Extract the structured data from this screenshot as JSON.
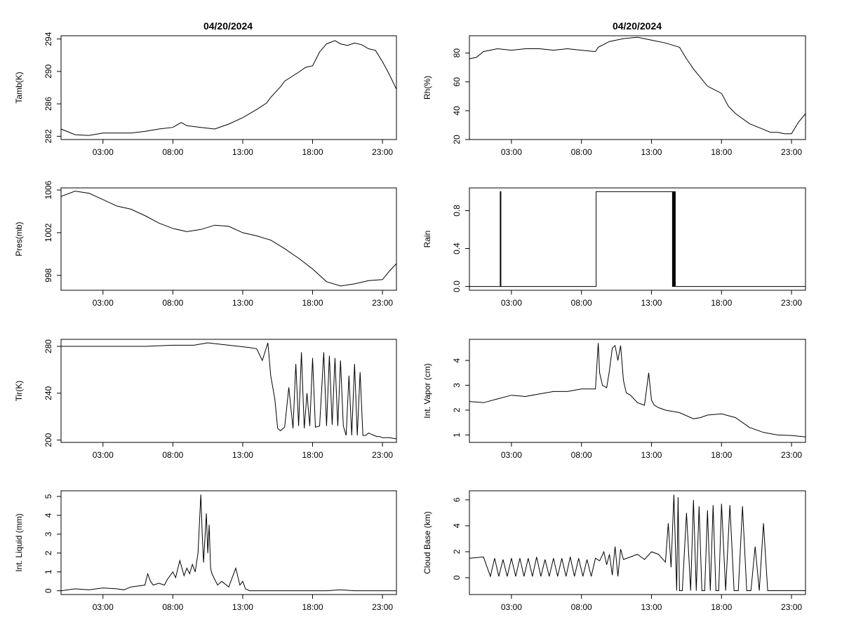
{
  "charts": {
    "left": {
      "title": "04/20/2024"
    },
    "right": {
      "title": "04/20/2024"
    }
  },
  "chart_data": [
    {
      "type": "line",
      "title": "04/20/2024",
      "ylabel": "Tamb(K)",
      "xlim": [
        0.0,
        24.0
      ],
      "ylim": [
        281.6,
        294.4
      ],
      "xticks": [
        3,
        8,
        13,
        18,
        23
      ],
      "xticklabels": [
        "03:00",
        "08:00",
        "13:00",
        "18:00",
        "23:00"
      ],
      "yticks": [
        282,
        286,
        290,
        294
      ],
      "yticklabels": [
        "282",
        "286",
        "290",
        "294"
      ],
      "x": [
        0,
        1,
        2,
        3,
        4,
        5,
        6,
        7,
        8,
        8.6,
        9,
        9.5,
        10,
        11,
        11.5,
        12,
        13,
        14,
        14.7,
        15,
        15.7,
        16,
        17,
        17.5,
        18,
        18.5,
        19,
        19.6,
        20,
        20.5,
        21,
        21.5,
        22,
        22.5,
        23,
        23.5,
        24
      ],
      "y": [
        282.9,
        282.2,
        282.1,
        282.4,
        282.4,
        282.4,
        282.6,
        282.9,
        283.1,
        283.7,
        283.3,
        283.2,
        283.1,
        282.9,
        283.2,
        283.5,
        284.3,
        285.3,
        286.1,
        286.8,
        288.1,
        288.8,
        289.9,
        290.5,
        290.7,
        292.4,
        293.4,
        293.8,
        293.4,
        293.2,
        293.5,
        293.3,
        292.8,
        292.6,
        291.2,
        289.6,
        287.8
      ]
    },
    {
      "type": "line",
      "title": "04/20/2024",
      "ylabel": "Rh(%)",
      "xlim": [
        0.0,
        24.0
      ],
      "ylim": [
        20,
        92
      ],
      "xticks": [
        3,
        8,
        13,
        18,
        23
      ],
      "xticklabels": [
        "03:00",
        "08:00",
        "13:00",
        "18:00",
        "23:00"
      ],
      "yticks": [
        20,
        40,
        60,
        80
      ],
      "yticklabels": [
        "20",
        "40",
        "60",
        "80"
      ],
      "x": [
        0,
        0.5,
        1,
        2,
        3,
        4,
        5,
        6,
        7,
        8,
        9,
        9.2,
        10,
        11,
        12,
        13,
        14,
        15,
        15.5,
        16,
        17,
        18,
        18.5,
        19,
        20,
        21,
        21.5,
        22,
        22.5,
        23,
        23.5,
        24
      ],
      "y": [
        76,
        77,
        81,
        83,
        82,
        83,
        83,
        82,
        83,
        82,
        81,
        84,
        88,
        90,
        91,
        89,
        87,
        84,
        76,
        69,
        57,
        52,
        43,
        38,
        31,
        27,
        25,
        25,
        24,
        24,
        32,
        38
      ]
    },
    {
      "type": "line",
      "ylabel": "Pres(mb)",
      "xlim": [
        0.0,
        24.0
      ],
      "ylim": [
        996.6,
        1006.2
      ],
      "xticks": [
        3,
        8,
        13,
        18,
        23
      ],
      "xticklabels": [
        "03:00",
        "08:00",
        "13:00",
        "18:00",
        "23:00"
      ],
      "yticks": [
        998,
        1002,
        1006
      ],
      "yticklabels": [
        "998",
        "1002",
        "1006"
      ],
      "x": [
        0,
        1,
        2,
        3,
        4,
        5,
        6,
        7,
        8,
        9,
        10,
        11,
        12,
        13,
        14,
        15,
        16,
        17,
        18,
        19,
        20,
        20.5,
        21,
        22,
        23,
        23.5,
        24
      ],
      "y": [
        1005.4,
        1005.9,
        1005.7,
        1005.1,
        1004.5,
        1004.2,
        1003.6,
        1002.9,
        1002.4,
        1002.1,
        1002.3,
        1002.7,
        1002.6,
        1002.0,
        1001.7,
        1001.3,
        1000.5,
        999.6,
        998.6,
        997.4,
        997.0,
        997.1,
        997.2,
        997.5,
        997.6,
        998.4,
        999.1
      ]
    },
    {
      "type": "line",
      "ylabel": "Rain",
      "xlim": [
        0.0,
        24.0
      ],
      "ylim": [
        -0.04,
        1.04
      ],
      "xticks": [
        3,
        8,
        13,
        18,
        23
      ],
      "xticklabels": [
        "03:00",
        "08:00",
        "13:00",
        "18:00",
        "23:00"
      ],
      "yticks": [
        0.0,
        0.4,
        0.8
      ],
      "yticklabels": [
        "0.0",
        "0.4",
        "0.8"
      ],
      "x": [
        0,
        2.2,
        2.2,
        2.25,
        2.25,
        9.05,
        9.05,
        14.5,
        14.5,
        14.55,
        14.55,
        14.6,
        14.6,
        14.65,
        14.65,
        14.7,
        14.7,
        24
      ],
      "y": [
        0,
        0,
        1,
        1,
        0,
        0,
        1,
        1,
        0,
        0,
        1,
        1,
        0,
        0,
        1,
        1,
        0,
        0
      ]
    },
    {
      "type": "line",
      "ylabel": "Tir(K)",
      "xlim": [
        0.0,
        24.0
      ],
      "ylim": [
        198,
        286
      ],
      "xticks": [
        3,
        8,
        13,
        18,
        23
      ],
      "xticklabels": [
        "03:00",
        "08:00",
        "13:00",
        "18:00",
        "23:00"
      ],
      "yticks": [
        200,
        240,
        280
      ],
      "yticklabels": [
        "200",
        "240",
        "280"
      ],
      "x": [
        0,
        2,
        4,
        6,
        8,
        9.5,
        10.5,
        12,
        13.5,
        14,
        14.4,
        14.8,
        15,
        15.3,
        15.5,
        15.7,
        15.9,
        16,
        16.3,
        16.6,
        16.8,
        17,
        17.2,
        17.4,
        17.6,
        17.8,
        18,
        18.2,
        18.5,
        18.8,
        19,
        19.2,
        19.4,
        19.6,
        19.8,
        20,
        20.2,
        20.4,
        20.6,
        20.8,
        21,
        21.2,
        21.4,
        21.6,
        21.8,
        22,
        22.2,
        22.4,
        22.6,
        22.8,
        23,
        23.5,
        24
      ],
      "y": [
        280,
        280,
        280,
        280,
        281,
        281,
        283,
        281,
        279,
        278,
        268,
        283,
        255,
        235,
        210,
        208,
        210,
        211,
        245,
        210,
        265,
        212,
        275,
        210,
        240,
        212,
        270,
        211,
        212,
        275,
        212,
        272,
        213,
        270,
        212,
        268,
        212,
        204,
        255,
        204,
        265,
        204,
        258,
        204,
        204,
        206,
        205,
        204,
        203,
        203,
        202,
        202,
        201
      ]
    },
    {
      "type": "line",
      "ylabel": "Int. Vapor (cm)",
      "xlim": [
        0.0,
        24.0
      ],
      "ylim": [
        0.7,
        4.85
      ],
      "xticks": [
        3,
        8,
        13,
        18,
        23
      ],
      "xticklabels": [
        "03:00",
        "08:00",
        "13:00",
        "18:00",
        "23:00"
      ],
      "yticks": [
        1,
        2,
        3,
        4
      ],
      "yticklabels": [
        "1",
        "2",
        "3",
        "4"
      ],
      "x": [
        0,
        1,
        2,
        3,
        4,
        5,
        6,
        7,
        8,
        9,
        9.2,
        9.3,
        9.5,
        9.8,
        10,
        10.2,
        10.4,
        10.6,
        10.8,
        11,
        11.2,
        11.5,
        12,
        12.5,
        12.8,
        13,
        13.2,
        13.5,
        14,
        15,
        16,
        16.5,
        17,
        18,
        19,
        20,
        21,
        22,
        23,
        24
      ],
      "y": [
        2.35,
        2.3,
        2.45,
        2.6,
        2.55,
        2.65,
        2.75,
        2.75,
        2.85,
        2.85,
        4.7,
        3.5,
        3.0,
        2.9,
        3.6,
        4.5,
        4.6,
        4.0,
        4.6,
        3.2,
        2.7,
        2.6,
        2.3,
        2.2,
        3.5,
        2.4,
        2.2,
        2.1,
        2.0,
        1.9,
        1.65,
        1.7,
        1.8,
        1.85,
        1.7,
        1.3,
        1.1,
        1.0,
        0.98,
        0.92
      ]
    },
    {
      "type": "line",
      "ylabel": "Int. Liquid (mm)",
      "xlim": [
        0.0,
        24.0
      ],
      "ylim": [
        -0.2,
        5.3
      ],
      "xticks": [
        3,
        8,
        13,
        18,
        23
      ],
      "xticklabels": [
        "03:00",
        "08:00",
        "13:00",
        "18:00",
        "23:00"
      ],
      "yticks": [
        0,
        1,
        2,
        3,
        4,
        5
      ],
      "yticklabels": [
        "0",
        "1",
        "2",
        "3",
        "4",
        "5"
      ],
      "x": [
        0,
        1,
        2,
        3,
        4,
        4.5,
        5,
        6,
        6.2,
        6.4,
        6.6,
        7,
        7.4,
        7.6,
        8,
        8.2,
        8.5,
        8.8,
        9,
        9.2,
        9.4,
        9.6,
        9.8,
        10,
        10.1,
        10.2,
        10.4,
        10.5,
        10.6,
        10.7,
        10.8,
        11,
        11.2,
        11.5,
        12,
        12.5,
        12.8,
        13,
        13.2,
        13.5,
        14,
        15,
        17,
        19,
        20,
        21,
        22,
        23,
        24
      ],
      "y": [
        0,
        0.1,
        0.05,
        0.15,
        0.1,
        0.05,
        0.2,
        0.3,
        0.9,
        0.5,
        0.3,
        0.4,
        0.3,
        0.6,
        1.0,
        0.7,
        1.6,
        0.8,
        1.2,
        0.9,
        1.4,
        1.0,
        2.0,
        5.1,
        3.0,
        1.5,
        4.1,
        2.0,
        3.5,
        1.2,
        0.9,
        0.6,
        0.3,
        0.5,
        0.2,
        1.2,
        0.3,
        0.5,
        0.1,
        0,
        0,
        0,
        0,
        0,
        0.05,
        0,
        0,
        0,
        0
      ]
    },
    {
      "type": "line",
      "ylabel": "Cloud Base (km)",
      "xlim": [
        0.0,
        24.0
      ],
      "ylim": [
        -1.3,
        6.7
      ],
      "xticks": [
        3,
        8,
        13,
        18,
        23
      ],
      "xticklabels": [
        "03:00",
        "08:00",
        "13:00",
        "18:00",
        "23:00"
      ],
      "yticks": [
        0,
        2,
        4,
        6
      ],
      "yticklabels": [
        "0",
        "2",
        "4",
        "6"
      ],
      "x": [
        0,
        1,
        1.5,
        1.8,
        2.1,
        2.4,
        2.7,
        3.0,
        3.3,
        3.6,
        3.9,
        4.2,
        4.5,
        4.8,
        5.1,
        5.4,
        5.7,
        6.0,
        6.3,
        6.6,
        6.9,
        7.2,
        7.5,
        7.8,
        8.1,
        8.4,
        8.7,
        9.0,
        9.3,
        9.6,
        9.8,
        10,
        10.2,
        10.4,
        10.6,
        10.8,
        11,
        11.5,
        12,
        12.5,
        13,
        13.5,
        14,
        14.2,
        14.4,
        14.6,
        14.8,
        14.9,
        15,
        15.2,
        15.5,
        15.8,
        16,
        16.2,
        16.4,
        16.6,
        16.8,
        17,
        17.2,
        17.4,
        17.6,
        17.8,
        18,
        18.3,
        18.6,
        18.9,
        19.2,
        19.5,
        19.8,
        20.1,
        20.4,
        20.7,
        21,
        21.3,
        21.6,
        21.9,
        22.2,
        22.5,
        22.8,
        23,
        23.5,
        24
      ],
      "y": [
        1.5,
        1.6,
        0.1,
        1.5,
        0.1,
        1.4,
        0.1,
        1.5,
        0.1,
        1.5,
        0.1,
        1.5,
        0.1,
        1.6,
        0.1,
        1.4,
        0.1,
        1.5,
        0.1,
        1.5,
        0.1,
        1.6,
        0.1,
        1.5,
        0.1,
        1.4,
        0.1,
        1.5,
        1.3,
        2.0,
        1.0,
        1.8,
        0.2,
        2.4,
        0.1,
        2.2,
        1.4,
        1.6,
        1.8,
        1.4,
        2.0,
        1.8,
        1.2,
        4.2,
        0.8,
        6.4,
        -1.0,
        6.2,
        -1.0,
        -1.0,
        5.0,
        -1.0,
        6.0,
        -1.0,
        5.5,
        -1.0,
        -1.0,
        5.2,
        -1.0,
        5.6,
        -1.0,
        -1.0,
        5.7,
        -1.0,
        5.6,
        -1.0,
        -1.0,
        5.5,
        -1.0,
        -1.0,
        2.4,
        -1.0,
        4.2,
        -1.0,
        -1.0,
        -1.0,
        -1.0,
        -1.0,
        -1.0,
        -1.0,
        -1.0,
        -1.0
      ]
    }
  ]
}
